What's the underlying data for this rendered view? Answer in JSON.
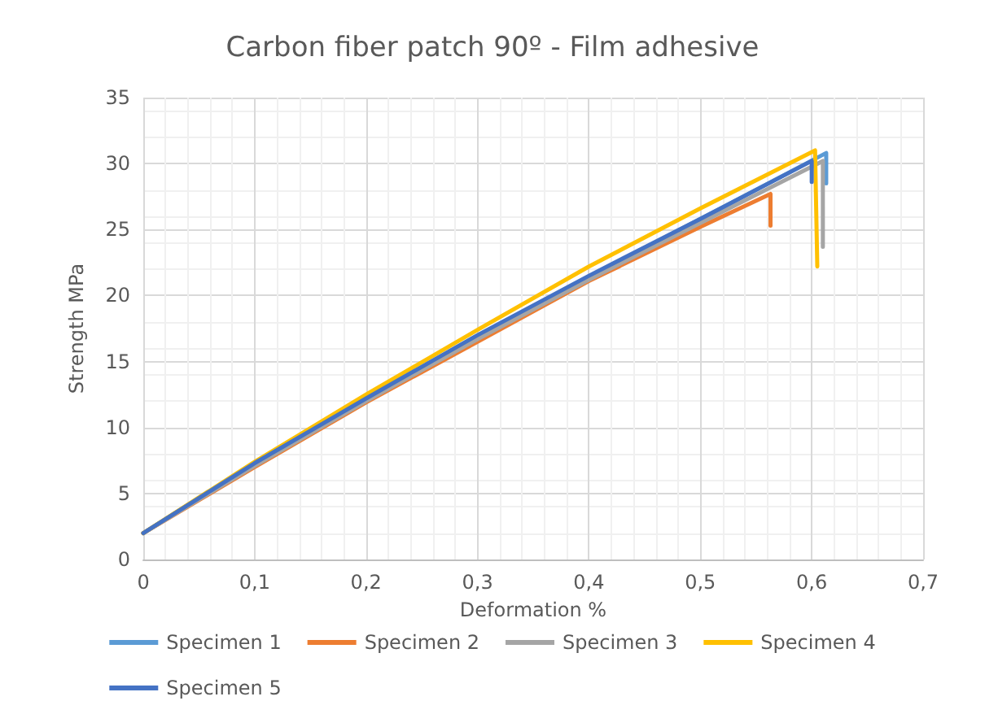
{
  "chart_data": {
    "type": "line",
    "title": "Carbon fiber patch 90º - Film adhesive",
    "xlabel": "Deformation %",
    "ylabel": "Strength MPa",
    "xlim": [
      0,
      0.7
    ],
    "xticks": [
      {
        "value": 0,
        "label": "0"
      },
      {
        "value": 0.1,
        "label": "0,1"
      },
      {
        "value": 0.2,
        "label": "0,2"
      },
      {
        "value": 0.3,
        "label": "0,3"
      },
      {
        "value": 0.4,
        "label": "0,4"
      },
      {
        "value": 0.5,
        "label": "0,5"
      },
      {
        "value": 0.6,
        "label": "0,6"
      },
      {
        "value": 0.7,
        "label": "0,7"
      }
    ],
    "ylim": [
      0,
      35
    ],
    "yticks": [
      0,
      5,
      10,
      15,
      20,
      25,
      30,
      35
    ],
    "grid": true,
    "legend": "bottom",
    "marker": "none",
    "line_style": "solid",
    "series": [
      {
        "name": "Specimen 1",
        "color": "#5b9bd5",
        "x": [
          0,
          0.1,
          0.2,
          0.3,
          0.4,
          0.5,
          0.613,
          0.613
        ],
        "values": [
          2,
          7.3,
          12.2,
          16.9,
          21.4,
          25.8,
          30.8,
          28.5
        ]
      },
      {
        "name": "Specimen 2",
        "color": "#ed7d31",
        "x": [
          0,
          0.1,
          0.2,
          0.3,
          0.4,
          0.5,
          0.563,
          0.563
        ],
        "values": [
          2,
          7,
          11.9,
          16.5,
          21.1,
          25.2,
          27.7,
          25.3
        ]
      },
      {
        "name": "Specimen 3",
        "color": "#a5a5a5",
        "x": [
          0,
          0.1,
          0.2,
          0.3,
          0.4,
          0.5,
          0.61,
          0.61
        ],
        "values": [
          2,
          7.1,
          12,
          16.7,
          21.2,
          25.5,
          30.2,
          23.7
        ]
      },
      {
        "name": "Specimen 4",
        "color": "#ffc000",
        "x": [
          0,
          0.1,
          0.2,
          0.3,
          0.4,
          0.5,
          0.603,
          0.605
        ],
        "values": [
          2,
          7.4,
          12.5,
          17.4,
          22.2,
          26.6,
          31,
          22.2
        ]
      },
      {
        "name": "Specimen 5",
        "color": "#4472c4",
        "x": [
          0,
          0.1,
          0.2,
          0.3,
          0.4,
          0.5,
          0.6,
          0.6
        ],
        "values": [
          2,
          7.3,
          12.2,
          17,
          21.5,
          25.8,
          30.2,
          28.6
        ]
      }
    ]
  }
}
